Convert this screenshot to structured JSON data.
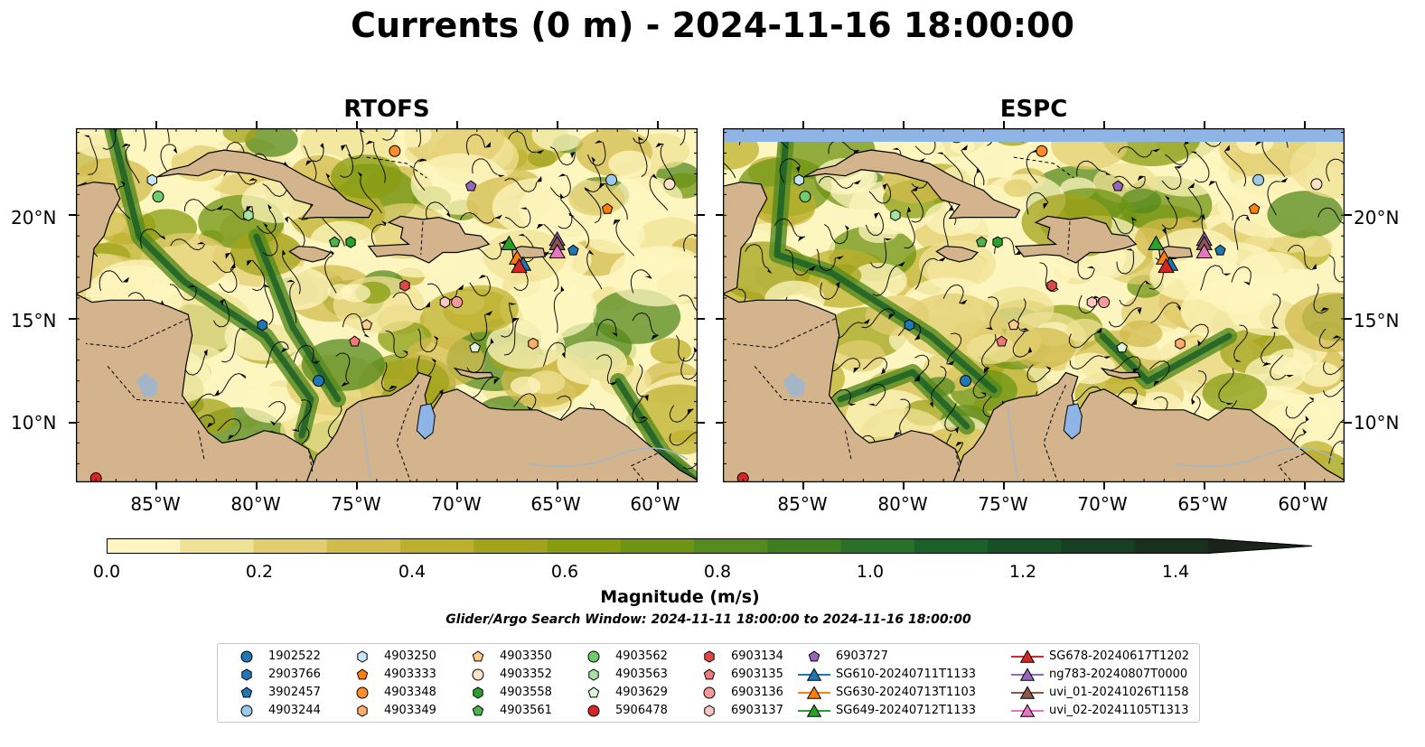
{
  "title": "Currents (0 m) - 2024-11-16 18:00:00",
  "panels": [
    {
      "id": "rtofs",
      "title": "RTOFS"
    },
    {
      "id": "espc",
      "title": "ESPC"
    }
  ],
  "lat_labels": [
    "20°N",
    "15°N",
    "10°N"
  ],
  "lon_labels": [
    "85°W",
    "80°W",
    "75°W",
    "70°W",
    "65°W",
    "60°W"
  ],
  "colorbar": {
    "label": "Magnitude (m/s)",
    "ticks": [
      "0.0",
      "0.2",
      "0.4",
      "0.6",
      "0.8",
      "1.0",
      "1.2",
      "1.4"
    ],
    "colors": [
      "#fdf5bf",
      "#f0e296",
      "#e2cd70",
      "#d1bb4d",
      "#bdb02f",
      "#a3a31c",
      "#889c10",
      "#6e9413",
      "#558a1e",
      "#3e7e23",
      "#2a7027",
      "#1b6028",
      "#155027",
      "#173f22",
      "#19301c",
      "#1b241a"
    ]
  },
  "search_window": "Glider/Argo Search Window: 2024-11-11 18:00:00 to 2024-11-16 18:00:00",
  "legend": [
    {
      "label": "1902522",
      "marker": "circle",
      "color": "#1f77b4"
    },
    {
      "label": "2903766",
      "marker": "hexagon",
      "color": "#1f77b4"
    },
    {
      "label": "3902457",
      "marker": "pentagon",
      "color": "#1f77b4"
    },
    {
      "label": "4903244",
      "marker": "circle",
      "color": "#9ecae9"
    },
    {
      "label": "4903250",
      "marker": "hexagon",
      "color": "#c6e4f7"
    },
    {
      "label": "4903333",
      "marker": "pentagon",
      "color": "#ff7f0e"
    },
    {
      "label": "4903348",
      "marker": "circle",
      "color": "#ff8c2a"
    },
    {
      "label": "4903349",
      "marker": "hexagon",
      "color": "#ffad6b"
    },
    {
      "label": "4903350",
      "marker": "pentagon",
      "color": "#ffcc8c"
    },
    {
      "label": "4903352",
      "marker": "circle",
      "color": "#ffe3c8"
    },
    {
      "label": "4903558",
      "marker": "hexagon",
      "color": "#2ca02c"
    },
    {
      "label": "4903561",
      "marker": "pentagon",
      "color": "#4cb34c"
    },
    {
      "label": "4903562",
      "marker": "circle",
      "color": "#6dcd6d"
    },
    {
      "label": "4903563",
      "marker": "hexagon",
      "color": "#a6e3a2"
    },
    {
      "label": "4903629",
      "marker": "pentagon",
      "color": "#dcf5d8"
    },
    {
      "label": "5906478",
      "marker": "circle",
      "color": "#d62728"
    },
    {
      "label": "6903134",
      "marker": "hexagon",
      "color": "#e04848"
    },
    {
      "label": "6903135",
      "marker": "pentagon",
      "color": "#f07878"
    },
    {
      "label": "6903136",
      "marker": "circle",
      "color": "#f59a9a"
    },
    {
      "label": "6903137",
      "marker": "hexagon",
      "color": "#fcc6c6"
    },
    {
      "label": "6903727",
      "marker": "pentagon",
      "color": "#9467bd"
    },
    {
      "label": "SG610-20240711T1133",
      "marker": "triangle",
      "color": "#1f77b4"
    },
    {
      "label": "SG630-20240713T1103",
      "marker": "triangle",
      "color": "#ff7f0e"
    },
    {
      "label": "SG649-20240712T1133",
      "marker": "triangle",
      "color": "#2ca02c"
    },
    {
      "label": "SG678-20240617T1202",
      "marker": "triangle",
      "color": "#d62728"
    },
    {
      "label": "ng783-20240807T0000",
      "marker": "triangle",
      "color": "#9467bd"
    },
    {
      "label": "uvi_01-20241026T1158",
      "marker": "triangle",
      "color": "#8c564b"
    },
    {
      "label": "uvi_02-20241105T1313",
      "marker": "triangle",
      "color": "#e377c2"
    }
  ],
  "map_colors": {
    "land": "#d3b48c",
    "ocean_low": "#fdf5bf",
    "water_body": "#8fb5e6",
    "lake": "#a4b6c6"
  },
  "observations": {
    "rtofs": [
      {
        "lon": -85.2,
        "lat": 21.7,
        "id": "4903250"
      },
      {
        "lon": -84.9,
        "lat": 20.9,
        "id": "4903562"
      },
      {
        "lon": -80.4,
        "lat": 20.0,
        "id": "4903563"
      },
      {
        "lon": -76.1,
        "lat": 18.7,
        "id": "4903561"
      },
      {
        "lon": -75.3,
        "lat": 18.7,
        "id": "4903558"
      },
      {
        "lon": -73.1,
        "lat": 23.1,
        "id": "4903348"
      },
      {
        "lon": -69.3,
        "lat": 21.4,
        "id": "6903727"
      },
      {
        "lon": -62.3,
        "lat": 21.7,
        "id": "4903244"
      },
      {
        "lon": -59.4,
        "lat": 21.5,
        "id": "4903352"
      },
      {
        "lon": -62.5,
        "lat": 20.3,
        "id": "4903333"
      },
      {
        "lon": -64.2,
        "lat": 18.3,
        "id": "3902457"
      },
      {
        "lon": -79.7,
        "lat": 14.7,
        "id": "2903766"
      },
      {
        "lon": -74.5,
        "lat": 14.7,
        "id": "4903350"
      },
      {
        "lon": -75.1,
        "lat": 13.9,
        "id": "6903135"
      },
      {
        "lon": -72.6,
        "lat": 16.6,
        "id": "6903134"
      },
      {
        "lon": -70.6,
        "lat": 15.8,
        "id": "6903137"
      },
      {
        "lon": -70.0,
        "lat": 15.8,
        "id": "6903136"
      },
      {
        "lon": -69.1,
        "lat": 13.6,
        "id": "4903629"
      },
      {
        "lon": -66.2,
        "lat": 13.8,
        "id": "4903349"
      },
      {
        "lon": -76.9,
        "lat": 12.0,
        "id": "1902522"
      },
      {
        "lon": -88.0,
        "lat": 7.3,
        "id": "5906478"
      }
    ],
    "espc": [
      {
        "lon": -85.2,
        "lat": 21.7,
        "id": "4903250"
      },
      {
        "lon": -84.9,
        "lat": 20.9,
        "id": "4903562"
      },
      {
        "lon": -80.4,
        "lat": 20.0,
        "id": "4903563"
      },
      {
        "lon": -76.1,
        "lat": 18.7,
        "id": "4903561"
      },
      {
        "lon": -75.3,
        "lat": 18.7,
        "id": "4903558"
      },
      {
        "lon": -73.1,
        "lat": 23.1,
        "id": "4903348"
      },
      {
        "lon": -69.3,
        "lat": 21.4,
        "id": "6903727"
      },
      {
        "lon": -62.3,
        "lat": 21.7,
        "id": "4903244"
      },
      {
        "lon": -59.4,
        "lat": 21.5,
        "id": "4903352"
      },
      {
        "lon": -62.5,
        "lat": 20.3,
        "id": "4903333"
      },
      {
        "lon": -64.2,
        "lat": 18.3,
        "id": "3902457"
      },
      {
        "lon": -79.7,
        "lat": 14.7,
        "id": "2903766"
      },
      {
        "lon": -74.5,
        "lat": 14.7,
        "id": "4903350"
      },
      {
        "lon": -75.1,
        "lat": 13.9,
        "id": "6903135"
      },
      {
        "lon": -72.6,
        "lat": 16.6,
        "id": "6903134"
      },
      {
        "lon": -70.6,
        "lat": 15.8,
        "id": "6903137"
      },
      {
        "lon": -70.0,
        "lat": 15.8,
        "id": "6903136"
      },
      {
        "lon": -69.1,
        "lat": 13.6,
        "id": "4903629"
      },
      {
        "lon": -66.2,
        "lat": 13.8,
        "id": "4903349"
      },
      {
        "lon": -76.9,
        "lat": 12.0,
        "id": "1902522"
      },
      {
        "lon": -88.0,
        "lat": 7.3,
        "id": "5906478"
      }
    ],
    "gliders": [
      {
        "lon": -67.4,
        "lat": 18.6,
        "id": "SG649-20240712T1133"
      },
      {
        "lon": -67.0,
        "lat": 17.9,
        "id": "SG630-20240713T1103"
      },
      {
        "lon": -66.7,
        "lat": 17.6,
        "id": "SG610-20240711T1133"
      },
      {
        "lon": -66.9,
        "lat": 17.5,
        "id": "SG678-20240617T1202"
      },
      {
        "lon": -65.0,
        "lat": 18.8,
        "id": "ng783-20240807T0000"
      },
      {
        "lon": -65.0,
        "lat": 18.6,
        "id": "uvi_01-20241026T1158"
      },
      {
        "lon": -65.0,
        "lat": 18.2,
        "id": "uvi_02-20241105T1313"
      }
    ]
  }
}
